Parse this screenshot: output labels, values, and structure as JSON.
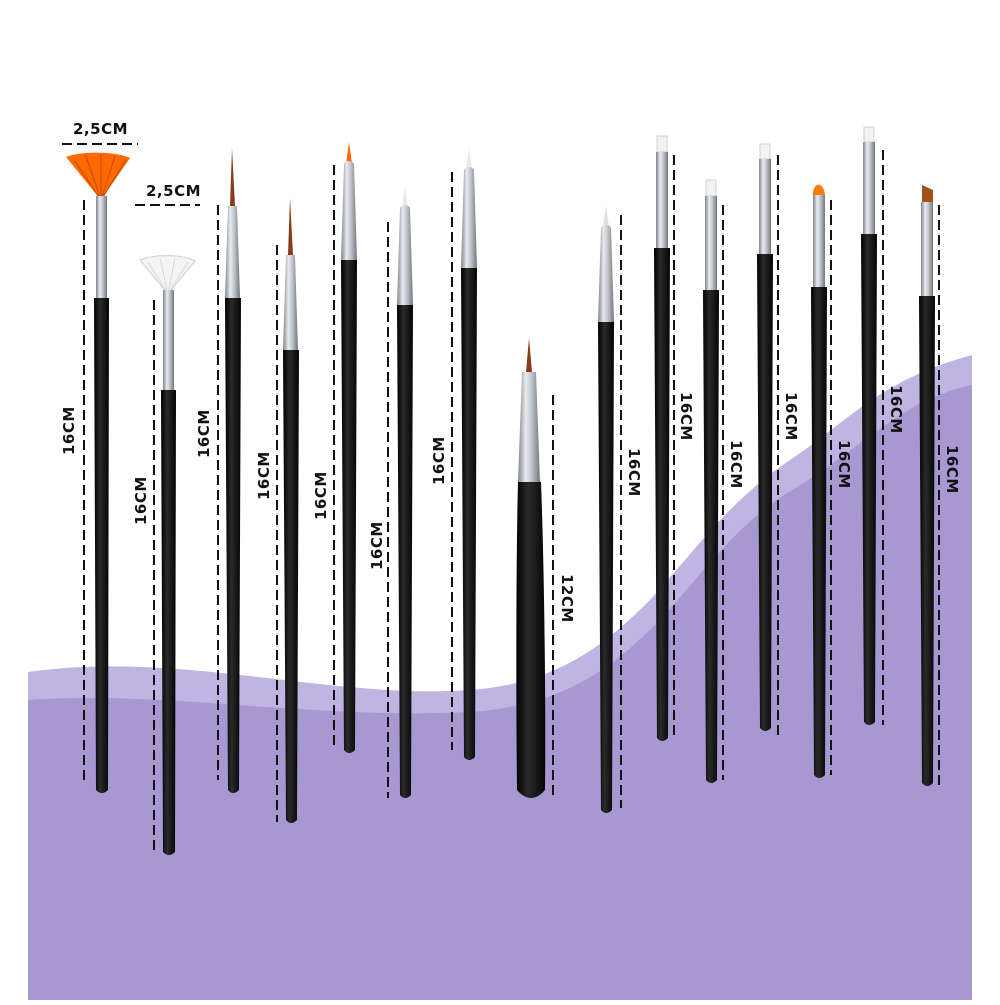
{
  "colors": {
    "background": "#ffffff",
    "wave_light": "#bfb4e2",
    "wave_main": "#a898d1",
    "handle": "#111111",
    "ferrule": "#b9bec4",
    "bristle_orange": "#ff6a00",
    "bristle_white": "#f4f4f4",
    "bristle_brown": "#8a3a1a"
  },
  "width_labels": [
    {
      "id": "fan-orange",
      "text": "2,5CM"
    },
    {
      "id": "fan-white",
      "text": "2,5CM"
    }
  ],
  "brushes": [
    {
      "id": "fan-orange",
      "tip": "fan",
      "bristle_color": "orange",
      "length_label": "16CM"
    },
    {
      "id": "fan-white",
      "tip": "fan",
      "bristle_color": "white",
      "length_label": "16CM"
    },
    {
      "id": "liner-1",
      "tip": "liner",
      "bristle_color": "brown",
      "length_label": "16CM"
    },
    {
      "id": "liner-2",
      "tip": "liner",
      "bristle_color": "brown",
      "length_label": "16CM"
    },
    {
      "id": "liner-3",
      "tip": "liner",
      "bristle_color": "orange",
      "length_label": "16CM"
    },
    {
      "id": "liner-4",
      "tip": "liner",
      "bristle_color": "white",
      "length_label": "16CM"
    },
    {
      "id": "liner-5",
      "tip": "liner",
      "bristle_color": "white",
      "length_label": "16CM"
    },
    {
      "id": "short-liner",
      "tip": "liner",
      "bristle_color": "brown",
      "length_label": "12CM"
    },
    {
      "id": "liner-6",
      "tip": "liner",
      "bristle_color": "white",
      "length_label": "16CM"
    },
    {
      "id": "flat-1",
      "tip": "flat",
      "bristle_color": "white",
      "length_label": "16CM"
    },
    {
      "id": "flat-2",
      "tip": "flat",
      "bristle_color": "white",
      "length_label": "16CM"
    },
    {
      "id": "flat-3",
      "tip": "flat",
      "bristle_color": "white",
      "length_label": "16CM"
    },
    {
      "id": "oval-orange",
      "tip": "oval",
      "bristle_color": "orange",
      "length_label": "16CM"
    },
    {
      "id": "flat-4",
      "tip": "flat",
      "bristle_color": "white",
      "length_label": "16CM"
    },
    {
      "id": "angled-brown",
      "tip": "angled",
      "bristle_color": "brown",
      "length_label": "16CM"
    }
  ]
}
